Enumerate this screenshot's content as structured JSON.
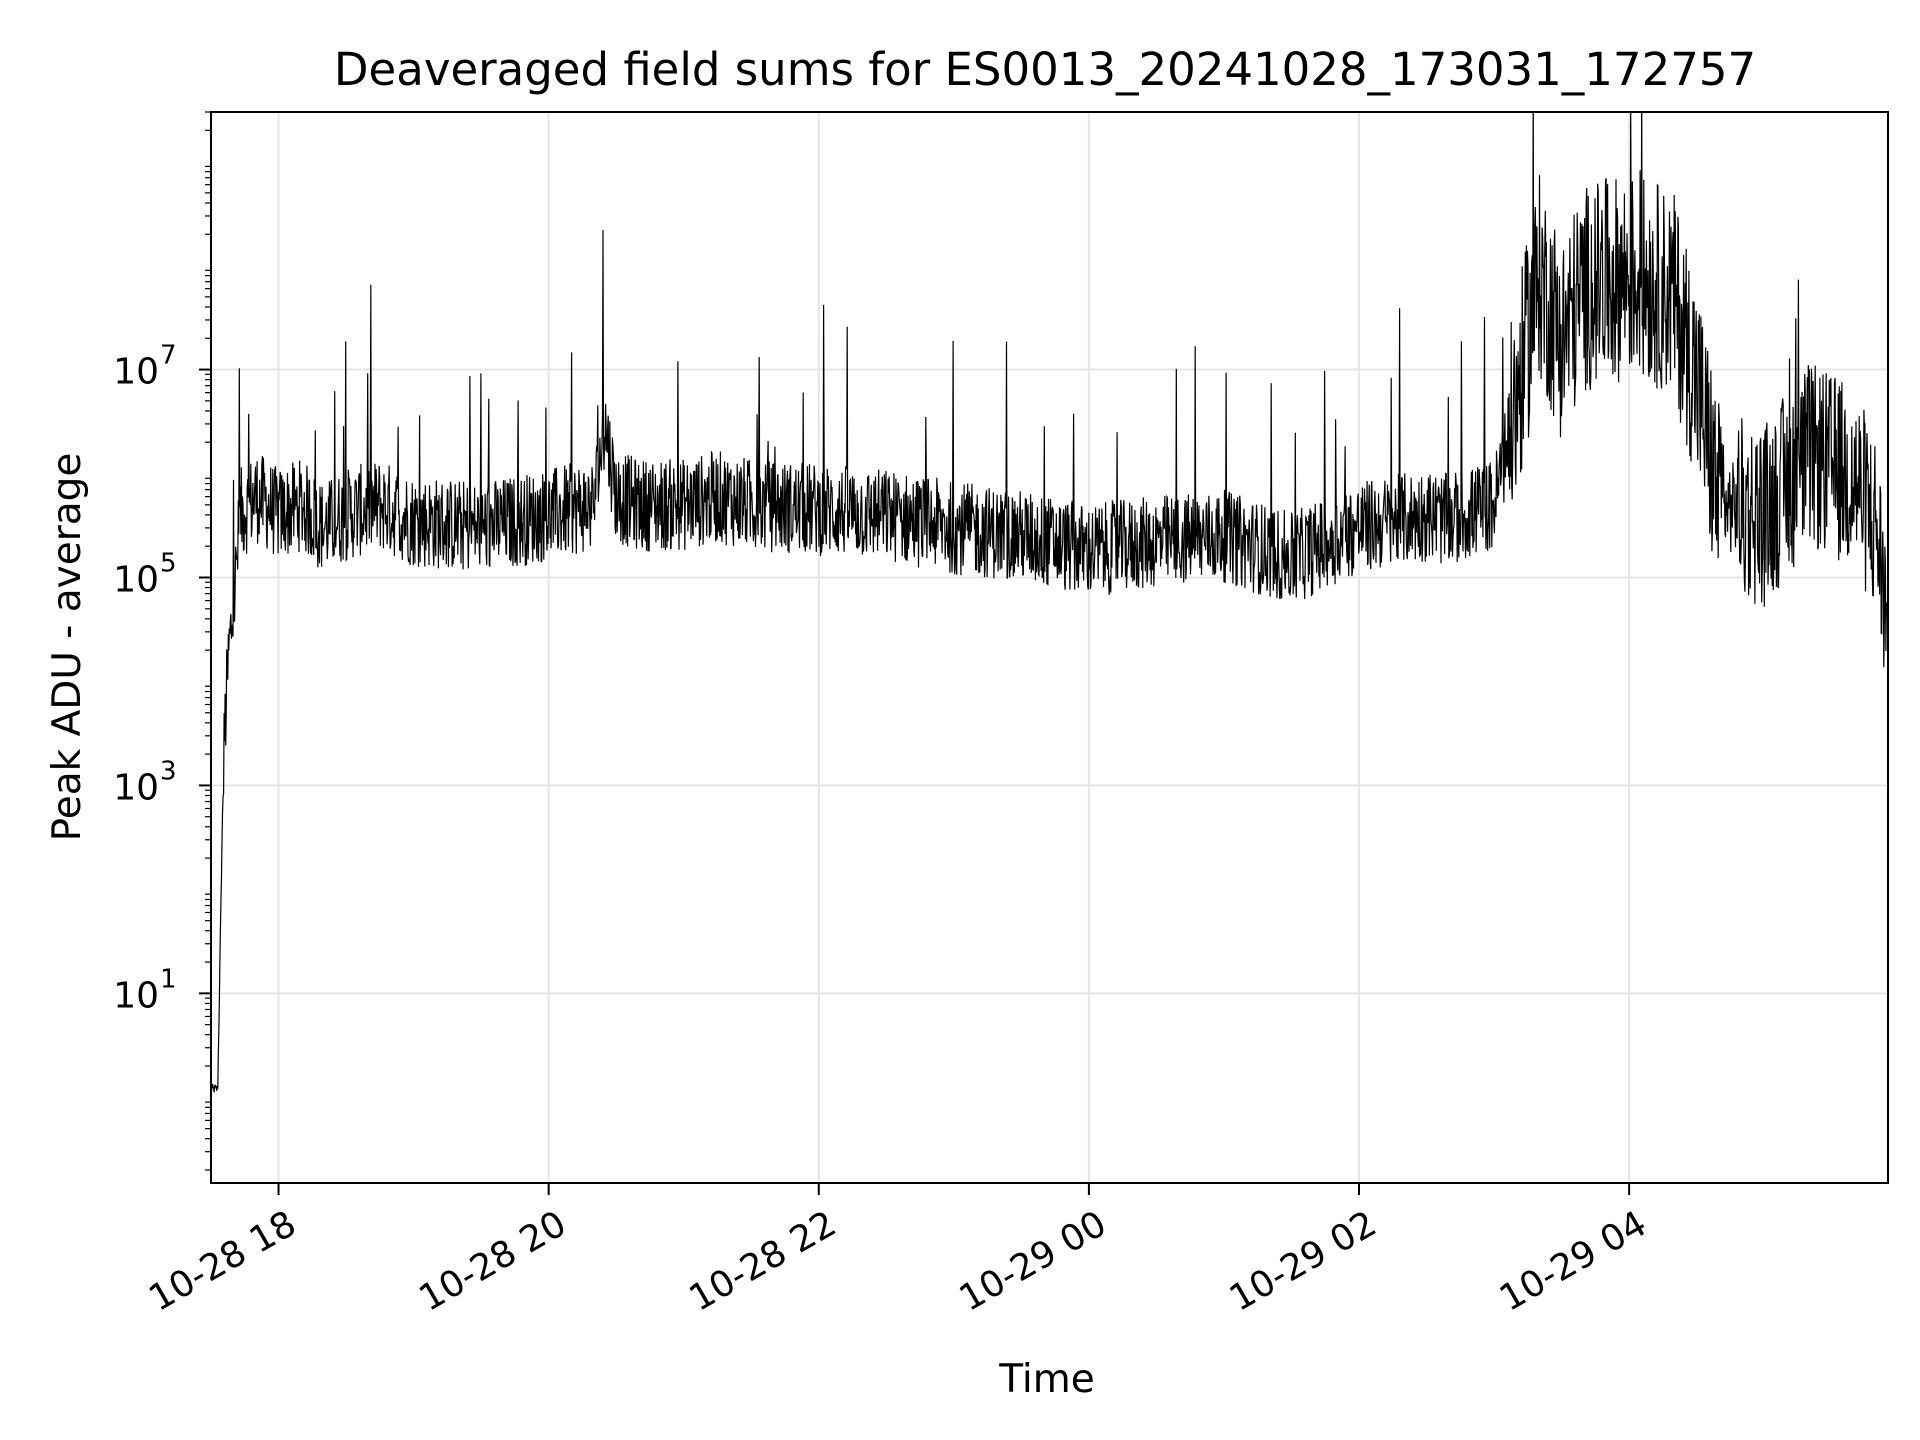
{
  "chart_data": {
    "type": "line",
    "title": "Deaveraged field sums for ES0013_20241028_173031_172757",
    "xlabel": "Time",
    "ylabel": "Peak ADU - average",
    "yscale": "log",
    "ylim": [
      0.15,
      3000000000
    ],
    "xlim": [
      "2024-10-28 17:30",
      "2024-10-29 05:55"
    ],
    "grid": true,
    "line_color": "#000000",
    "grid_color": "#e5e5e5",
    "x_ticks": [
      {
        "label": "10-28 18",
        "value": "2024-10-28 18:00"
      },
      {
        "label": "10-28 20",
        "value": "2024-10-28 20:00"
      },
      {
        "label": "10-28 22",
        "value": "2024-10-28 22:00"
      },
      {
        "label": "10-29 00",
        "value": "2024-10-29 00:00"
      },
      {
        "label": "10-29 02",
        "value": "2024-10-29 02:00"
      },
      {
        "label": "10-29 04",
        "value": "2024-10-29 04:00"
      }
    ],
    "y_ticks": [
      {
        "base": "10",
        "exp": "1",
        "value": 10
      },
      {
        "base": "10",
        "exp": "3",
        "value": 1000
      },
      {
        "base": "10",
        "exp": "5",
        "value": 100000
      },
      {
        "base": "10",
        "exp": "7",
        "value": 10000000
      }
    ],
    "series": [
      {
        "x": [
          "2024-10-28 17:30",
          "2024-10-28 17:33",
          "2024-10-28 17:35",
          "2024-10-28 17:36",
          "2024-10-28 17:38",
          "2024-10-28 17:40",
          "2024-10-28 17:43",
          "2024-10-28 17:47",
          "2024-10-28 17:50",
          "2024-10-28 17:55",
          "2024-10-28 18:00",
          "2024-10-28 18:10",
          "2024-10-28 18:20",
          "2024-10-28 18:30",
          "2024-10-28 18:45",
          "2024-10-28 19:00",
          "2024-10-28 19:30",
          "2024-10-28 20:00",
          "2024-10-28 20:20",
          "2024-10-28 20:25",
          "2024-10-28 20:30",
          "2024-10-28 20:40",
          "2024-10-28 21:00",
          "2024-10-28 21:15",
          "2024-10-28 21:30",
          "2024-10-28 22:00",
          "2024-10-28 22:30",
          "2024-10-28 23:00",
          "2024-10-28 23:30",
          "2024-10-29 00:00",
          "2024-10-29 00:30",
          "2024-10-29 01:00",
          "2024-10-29 01:30",
          "2024-10-29 02:00",
          "2024-10-29 02:30",
          "2024-10-29 02:40",
          "2024-10-29 03:00",
          "2024-10-29 03:10",
          "2024-10-29 03:20",
          "2024-10-29 03:30",
          "2024-10-29 03:40",
          "2024-10-29 03:50",
          "2024-10-29 04:00",
          "2024-10-29 04:10",
          "2024-10-29 04:20",
          "2024-10-29 04:30",
          "2024-10-29 04:40",
          "2024-10-29 05:00",
          "2024-10-29 05:20",
          "2024-10-29 05:40",
          "2024-10-29 05:50",
          "2024-10-29 05:55"
        ],
        "values": [
          1.2,
          1.2,
          400,
          3000,
          20000,
          50000,
          400000,
          500000,
          600000,
          500000,
          400000,
          500000,
          300000,
          400000,
          500000,
          350000,
          300000,
          400000,
          500000,
          3000000,
          600000,
          500000,
          500000,
          600000,
          500000,
          450000,
          400000,
          300000,
          250000,
          180000,
          220000,
          250000,
          150000,
          300000,
          400000,
          350000,
          500000,
          5000000,
          80000000,
          20000000,
          60000000,
          70000000,
          80000000,
          70000000,
          50000000,
          8000000,
          500000,
          400000,
          1500000,
          900000,
          300000,
          30000
        ]
      }
    ]
  }
}
